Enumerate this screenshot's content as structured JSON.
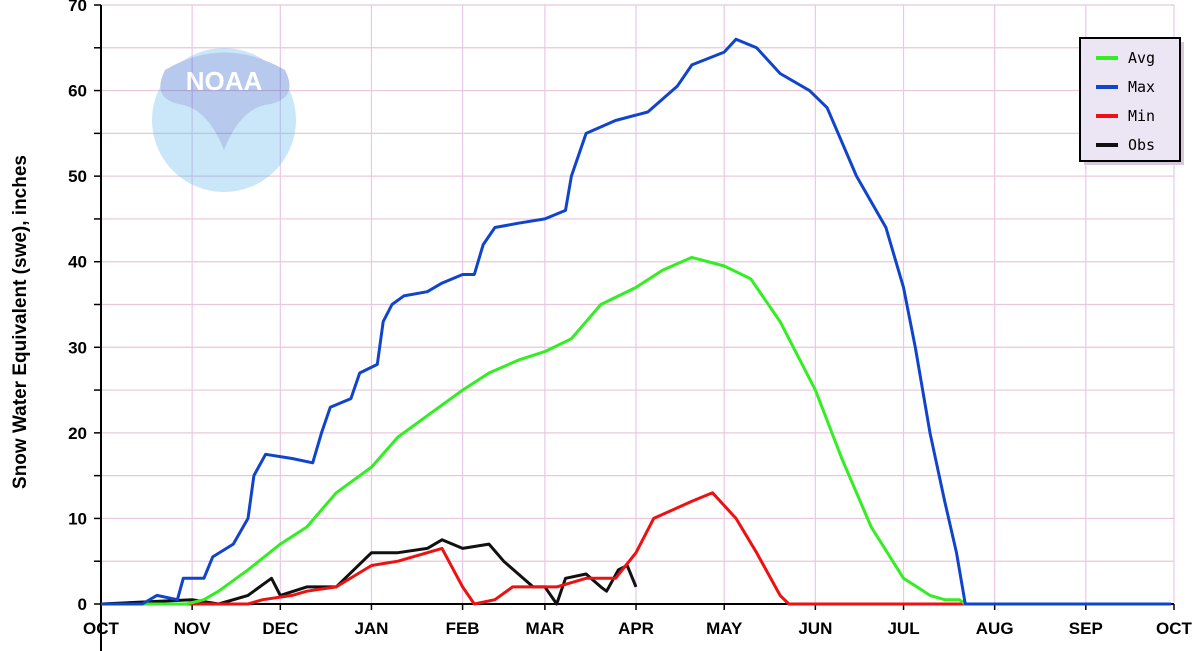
{
  "chart_data": {
    "type": "line",
    "title": "",
    "xlabel": "",
    "ylabel": "Snow Water Equivalent (swe),  inches",
    "ylim": [
      0,
      70
    ],
    "yticks": [
      "0",
      "10",
      "20",
      "30",
      "40",
      "50",
      "60",
      "70"
    ],
    "xticks": [
      "OCT",
      "NOV",
      "DEC",
      "JAN",
      "FEB",
      "MAR",
      "APR",
      "MAY",
      "JUN",
      "JUL",
      "AUG",
      "SEP",
      "OCT"
    ],
    "grid": true,
    "legend_position": "top-right",
    "logo": "NOAA",
    "series": [
      {
        "name": "Avg",
        "color": "#33ee22",
        "points": [
          [
            "Oct 1",
            0
          ],
          [
            "Oct 30",
            0
          ],
          [
            "Nov 5",
            0.5
          ],
          [
            "Nov 10",
            1.5
          ],
          [
            "Nov 20",
            4
          ],
          [
            "Dec 1",
            7
          ],
          [
            "Dec 10",
            9
          ],
          [
            "Dec 20",
            13
          ],
          [
            "Jan 1",
            16
          ],
          [
            "Jan 10",
            19.5
          ],
          [
            "Jan 20",
            22
          ],
          [
            "Feb 1",
            25
          ],
          [
            "Feb 10",
            27
          ],
          [
            "Feb 20",
            28.5
          ],
          [
            "Mar 1",
            29.5
          ],
          [
            "Mar 10",
            31
          ],
          [
            "Mar 20",
            35
          ],
          [
            "Apr 1",
            37
          ],
          [
            "Apr 10",
            39
          ],
          [
            "Apr 20",
            40.5
          ],
          [
            "May 1",
            39.5
          ],
          [
            "May 10",
            38
          ],
          [
            "May 20",
            33
          ],
          [
            "Jun 1",
            25
          ],
          [
            "Jun 10",
            17
          ],
          [
            "Jun 20",
            9
          ],
          [
            "Jul 1",
            3
          ],
          [
            "Jul 10",
            1
          ],
          [
            "Jul 15",
            0.5
          ],
          [
            "Jul 20",
            0.5
          ],
          [
            "Jul 22",
            0
          ]
        ]
      },
      {
        "name": "Max",
        "color": "#1144cc",
        "points": [
          [
            "Oct 1",
            0
          ],
          [
            "Oct 15",
            0
          ],
          [
            "Oct 20",
            1
          ],
          [
            "Oct 27",
            0.5
          ],
          [
            "Oct 29",
            3
          ],
          [
            "Nov 5",
            3
          ],
          [
            "Nov 8",
            5.5
          ],
          [
            "Nov 15",
            7
          ],
          [
            "Nov 20",
            10
          ],
          [
            "Nov 22",
            15
          ],
          [
            "Nov 26",
            17.5
          ],
          [
            "Dec 5",
            17
          ],
          [
            "Dec 12",
            16.5
          ],
          [
            "Dec 15",
            20
          ],
          [
            "Dec 18",
            23
          ],
          [
            "Dec 25",
            24
          ],
          [
            "Dec 28",
            27
          ],
          [
            "Jan 3",
            28
          ],
          [
            "Jan 5",
            33
          ],
          [
            "Jan 8",
            35
          ],
          [
            "Jan 12",
            36
          ],
          [
            "Jan 20",
            36.5
          ],
          [
            "Jan 25",
            37.5
          ],
          [
            "Feb 1",
            38.5
          ],
          [
            "Feb 5",
            38.5
          ],
          [
            "Feb 8",
            42
          ],
          [
            "Feb 12",
            44
          ],
          [
            "Feb 20",
            44.5
          ],
          [
            "Mar 1",
            45
          ],
          [
            "Mar 8",
            46
          ],
          [
            "Mar 10",
            50
          ],
          [
            "Mar 15",
            55
          ],
          [
            "Mar 25",
            56.5
          ],
          [
            "Apr 5",
            57.5
          ],
          [
            "Apr 10",
            59
          ],
          [
            "Apr 15",
            60.5
          ],
          [
            "Apr 20",
            63
          ],
          [
            "May 1",
            64.5
          ],
          [
            "May 5",
            66
          ],
          [
            "May 12",
            65
          ],
          [
            "May 20",
            62
          ],
          [
            "May 30",
            60
          ],
          [
            "Jun 5",
            58
          ],
          [
            "Jun 15",
            50
          ],
          [
            "Jun 25",
            44
          ],
          [
            "Jul 1",
            37
          ],
          [
            "Jul 5",
            30
          ],
          [
            "Jul 10",
            20
          ],
          [
            "Jul 15",
            12
          ],
          [
            "Jul 19",
            6
          ],
          [
            "Jul 22",
            0
          ],
          [
            "Sep 30",
            0
          ]
        ]
      },
      {
        "name": "Min",
        "color": "#ee1111",
        "points": [
          [
            "Oct 1",
            0
          ],
          [
            "Nov 20",
            0
          ],
          [
            "Nov 25",
            0.5
          ],
          [
            "Dec 5",
            1
          ],
          [
            "Dec 10",
            1.5
          ],
          [
            "Dec 20",
            2
          ],
          [
            "Jan 1",
            4.5
          ],
          [
            "Jan 10",
            5
          ],
          [
            "Jan 20",
            6
          ],
          [
            "Jan 25",
            6.5
          ],
          [
            "Feb 1",
            2
          ],
          [
            "Feb 5",
            0
          ],
          [
            "Feb 12",
            0.5
          ],
          [
            "Feb 18",
            2
          ],
          [
            "Mar 5",
            2
          ],
          [
            "Mar 15",
            3
          ],
          [
            "Mar 25",
            3
          ],
          [
            "Apr 1",
            6
          ],
          [
            "Apr 7",
            10
          ],
          [
            "Apr 20",
            12
          ],
          [
            "Apr 27",
            13
          ],
          [
            "May 5",
            10
          ],
          [
            "May 12",
            6
          ],
          [
            "May 20",
            1
          ],
          [
            "May 23",
            0
          ],
          [
            "Sep 30",
            0
          ]
        ]
      },
      {
        "name": "Obs",
        "color": "#111111",
        "points": [
          [
            "Oct 1",
            0
          ],
          [
            "Nov 1",
            0.5
          ],
          [
            "Nov 10",
            0
          ],
          [
            "Nov 20",
            1
          ],
          [
            "Nov 28",
            3
          ],
          [
            "Dec 1",
            1
          ],
          [
            "Dec 10",
            2
          ],
          [
            "Dec 20",
            2
          ],
          [
            "Jan 1",
            6
          ],
          [
            "Jan 10",
            6
          ],
          [
            "Jan 20",
            6.5
          ],
          [
            "Jan 25",
            7.5
          ],
          [
            "Feb 1",
            6.5
          ],
          [
            "Feb 10",
            7
          ],
          [
            "Feb 15",
            5
          ],
          [
            "Feb 25",
            2
          ],
          [
            "Mar 1",
            2
          ],
          [
            "Mar 5",
            0
          ],
          [
            "Mar 8",
            3
          ],
          [
            "Mar 15",
            3.5
          ],
          [
            "Mar 20",
            2
          ],
          [
            "Mar 22",
            1.5
          ],
          [
            "Mar 26",
            4
          ],
          [
            "Mar 29",
            4.5
          ],
          [
            "Apr 1",
            2
          ]
        ]
      }
    ]
  }
}
